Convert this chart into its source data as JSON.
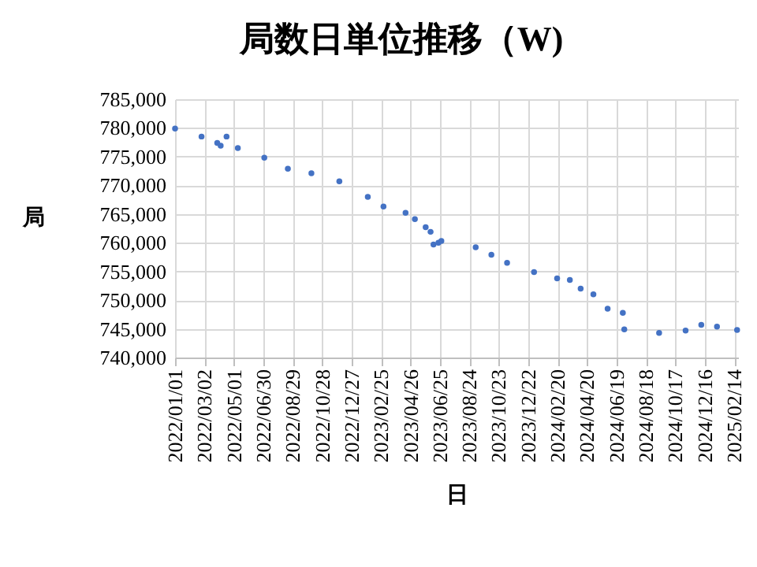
{
  "chart_data": {
    "type": "scatter",
    "title": "局数日単位推移（W)",
    "xlabel": "日",
    "ylabel": "局",
    "x": [
      "2022-01-01",
      "2022-02-24",
      "2022-03-28",
      "2022-04-04",
      "2022-04-16",
      "2022-05-09",
      "2022-07-02",
      "2022-08-19",
      "2022-10-06",
      "2022-12-02",
      "2023-01-29",
      "2023-03-02",
      "2023-04-16",
      "2023-05-05",
      "2023-05-27",
      "2023-06-06",
      "2023-06-12",
      "2023-06-22",
      "2023-06-28",
      "2023-09-06",
      "2023-10-08",
      "2023-11-09",
      "2024-01-03",
      "2024-02-19",
      "2024-03-16",
      "2024-04-07",
      "2024-05-03",
      "2024-06-01",
      "2024-07-02",
      "2024-07-05",
      "2024-09-14",
      "2024-11-07",
      "2024-12-09",
      "2025-01-10",
      "2025-02-20"
    ],
    "series": [
      {
        "color": "#4472c4",
        "values": [
          779900,
          778500,
          777400,
          776900,
          778500,
          776500,
          774800,
          772900,
          772100,
          770700,
          768000,
          766300,
          765200,
          764100,
          762700,
          761900,
          759700,
          760000,
          760300,
          759200,
          757900,
          756500,
          754900,
          753800,
          753500,
          752000,
          751000,
          748500,
          747800,
          744900,
          744300,
          744700,
          745700,
          745400,
          744800
        ]
      }
    ],
    "xlim": [
      "2022-01-01",
      "2025-02-22"
    ],
    "xticks": [
      {
        "value": "2022-01-01",
        "label": "2022/01/01"
      },
      {
        "value": "2022-03-02",
        "label": "2022/03/02"
      },
      {
        "value": "2022-05-01",
        "label": "2022/05/01"
      },
      {
        "value": "2022-06-30",
        "label": "2022/06/30"
      },
      {
        "value": "2022-08-29",
        "label": "2022/08/29"
      },
      {
        "value": "2022-10-28",
        "label": "2022/10/28"
      },
      {
        "value": "2022-12-27",
        "label": "2022/12/27"
      },
      {
        "value": "2023-02-25",
        "label": "2023/02/25"
      },
      {
        "value": "2023-04-26",
        "label": "2023/04/26"
      },
      {
        "value": "2023-06-25",
        "label": "2023/06/25"
      },
      {
        "value": "2023-08-24",
        "label": "2023/08/24"
      },
      {
        "value": "2023-10-23",
        "label": "2023/10/23"
      },
      {
        "value": "2023-12-22",
        "label": "2023/12/22"
      },
      {
        "value": "2024-02-20",
        "label": "2024/02/20"
      },
      {
        "value": "2024-04-20",
        "label": "2024/04/20"
      },
      {
        "value": "2024-06-19",
        "label": "2024/06/19"
      },
      {
        "value": "2024-08-18",
        "label": "2024/08/18"
      },
      {
        "value": "2024-10-17",
        "label": "2024/10/17"
      },
      {
        "value": "2024-12-16",
        "label": "2024/12/16"
      },
      {
        "value": "2025-02-14",
        "label": "2025/02/14"
      }
    ],
    "ylim": [
      740000,
      785000
    ],
    "yticks": [
      {
        "value": 740000,
        "label": "740,000"
      },
      {
        "value": 745000,
        "label": "745,000"
      },
      {
        "value": 750000,
        "label": "750,000"
      },
      {
        "value": 755000,
        "label": "755,000"
      },
      {
        "value": 760000,
        "label": "760,000"
      },
      {
        "value": 765000,
        "label": "765,000"
      },
      {
        "value": 770000,
        "label": "770,000"
      },
      {
        "value": 775000,
        "label": "775,000"
      },
      {
        "value": 780000,
        "label": "780,000"
      },
      {
        "value": 785000,
        "label": "785,000"
      }
    ],
    "grid": true,
    "marker": "circle"
  }
}
